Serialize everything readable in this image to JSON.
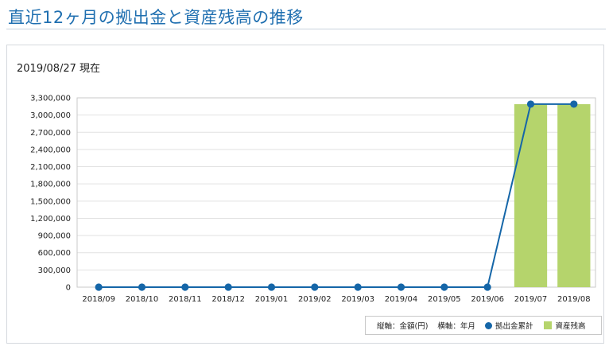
{
  "page_title": "直近12ヶ月の拠出金と資産残高の推移",
  "as_of": "2019/08/27 現在",
  "legend": {
    "vertical_axis_note": "縦軸：金額(円)",
    "horizontal_axis_note": "横軸：年月",
    "line_series_label": "拠出金累計",
    "bar_series_label": "資産残高"
  },
  "colors": {
    "title": "#1f6fb0",
    "line": "#1566a8",
    "bar": "#b5d46c",
    "grid": "#e2e2e2"
  },
  "chart_data": {
    "type": "bar",
    "categories": [
      "2018/09",
      "2018/10",
      "2018/11",
      "2018/12",
      "2019/01",
      "2019/02",
      "2019/03",
      "2019/04",
      "2019/05",
      "2019/06",
      "2019/07",
      "2019/08"
    ],
    "series": [
      {
        "name": "資産残高",
        "type": "bar",
        "values": [
          0,
          0,
          0,
          0,
          0,
          0,
          0,
          0,
          0,
          0,
          3190000,
          3190000
        ]
      },
      {
        "name": "拠出金累計",
        "type": "line",
        "values": [
          0,
          0,
          0,
          0,
          0,
          0,
          0,
          0,
          0,
          0,
          3190000,
          3190000
        ]
      }
    ],
    "yticks": [
      "0",
      "300,000",
      "600,000",
      "900,000",
      "1,200,000",
      "1,500,000",
      "1,800,000",
      "2,100,000",
      "2,400,000",
      "2,700,000",
      "3,000,000",
      "3,300,000"
    ],
    "ylim": [
      0,
      3300000
    ],
    "grid": true,
    "legend_position": "bottom-right"
  }
}
